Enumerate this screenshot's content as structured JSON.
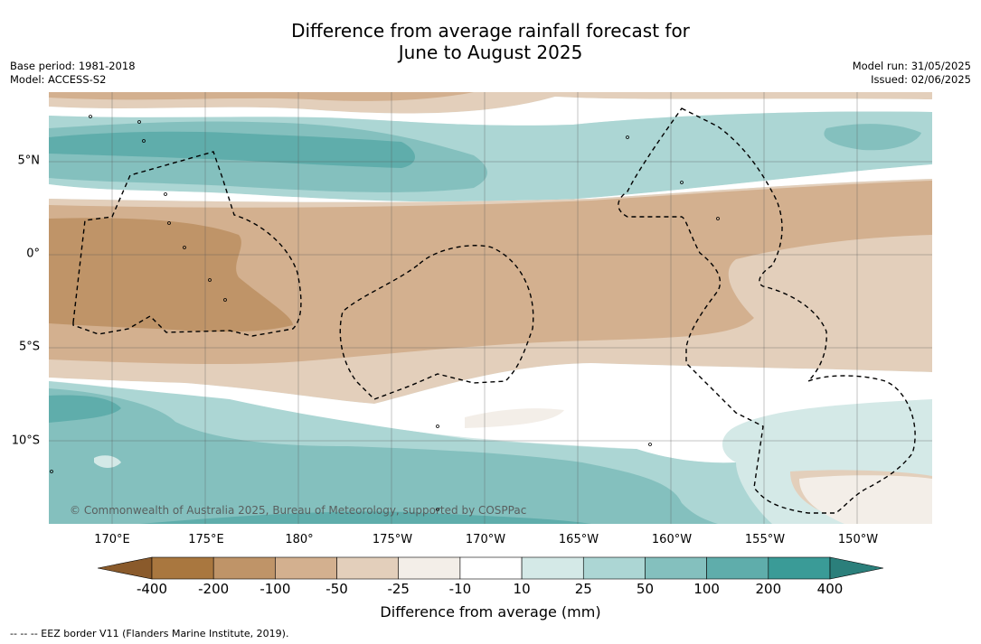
{
  "title_line1": "Difference from average rainfall forecast for",
  "title_line2": "June to August 2025",
  "base_period": "Base period: 1981-2018",
  "model": "Model: ACCESS-S2",
  "model_run": "Model run: 31/05/2025",
  "issued": "Issued: 02/06/2025",
  "copyright": "© Commonwealth of Australia 2025, Bureau of Meteorology, supported by COSPPac",
  "lat_labels": [
    "5°N",
    "0°",
    "5°S",
    "10°S"
  ],
  "lon_labels": [
    "170°E",
    "175°E",
    "180°",
    "175°W",
    "170°W",
    "165°W",
    "160°W",
    "155°W",
    "150°W"
  ],
  "colorbar": {
    "title": "Difference from average (mm)",
    "ticks": [
      "-400",
      "-200",
      "-100",
      "-50",
      "-25",
      "-10",
      "10",
      "25",
      "50",
      "100",
      "200",
      "400"
    ],
    "colors": [
      "#8a5a2b",
      "#a9773f",
      "#bf9468",
      "#d3b08f",
      "#e3cfbb",
      "#f3eee8",
      "#ffffff",
      "#d4e9e7",
      "#acd6d4",
      "#84c0be",
      "#5fadab",
      "#3a9b97",
      "#2b7f7b"
    ]
  },
  "eez_footnote": "--  --  -- EEZ border V11 (Flanders Marine Institute, 2019)."
}
